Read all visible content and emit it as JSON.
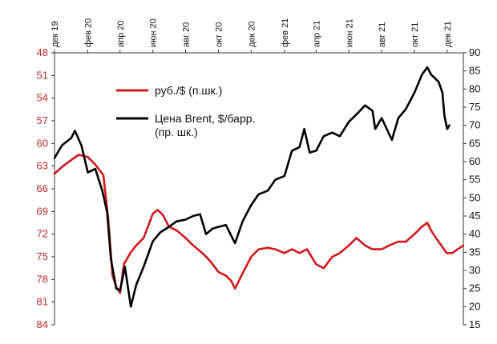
{
  "chart_data": {
    "type": "line",
    "title": "",
    "x_range": [
      "2019-12-01",
      "2021-12-31"
    ],
    "x_ticks": [
      {
        "date": "2019-12-01",
        "label": "дек 19"
      },
      {
        "date": "2020-02-01",
        "label": "фев 20"
      },
      {
        "date": "2020-04-01",
        "label": "апр 20"
      },
      {
        "date": "2020-06-01",
        "label": "июн 20"
      },
      {
        "date": "2020-08-01",
        "label": "авг 20"
      },
      {
        "date": "2020-10-01",
        "label": "окт 20"
      },
      {
        "date": "2020-12-01",
        "label": "дек 20"
      },
      {
        "date": "2021-02-01",
        "label": "фев 21"
      },
      {
        "date": "2021-04-01",
        "label": "апр 21"
      },
      {
        "date": "2021-06-01",
        "label": "июн 21"
      },
      {
        "date": "2021-08-01",
        "label": "авг 21"
      },
      {
        "date": "2021-10-01",
        "label": "окт 21"
      },
      {
        "date": "2021-12-01",
        "label": "дек 21"
      }
    ],
    "y_left": {
      "min": 48,
      "max": 84,
      "inverted": true,
      "ticks": [
        "48",
        "51",
        "54",
        "57",
        "60",
        "63",
        "66",
        "69",
        "72",
        "75",
        "78",
        "81",
        "84"
      ],
      "color": "#c0282a"
    },
    "y_right": {
      "min": 15,
      "max": 90,
      "ticks": [
        "15",
        "20",
        "25",
        "30",
        "35",
        "40",
        "45",
        "50",
        "55",
        "60",
        "65",
        "70",
        "75",
        "80",
        "85",
        "90"
      ]
    },
    "legend": {
      "placement": "upper-left-inside"
    },
    "series": [
      {
        "name": "руб./$ (п.шк.)",
        "axis": "left",
        "color": "#d0181c",
        "points": [
          [
            "2019-12-01",
            64.0
          ],
          [
            "2019-12-15",
            63.1
          ],
          [
            "2020-01-01",
            62.2
          ],
          [
            "2020-01-15",
            61.5
          ],
          [
            "2020-02-01",
            61.8
          ],
          [
            "2020-02-15",
            62.8
          ],
          [
            "2020-03-01",
            64.2
          ],
          [
            "2020-03-10",
            70.0
          ],
          [
            "2020-03-18",
            77.5
          ],
          [
            "2020-03-25",
            79.0
          ],
          [
            "2020-04-01",
            79.8
          ],
          [
            "2020-04-08",
            76.0
          ],
          [
            "2020-04-20",
            74.5
          ],
          [
            "2020-05-01",
            73.5
          ],
          [
            "2020-05-15",
            72.5
          ],
          [
            "2020-06-01",
            69.3
          ],
          [
            "2020-06-10",
            68.8
          ],
          [
            "2020-06-20",
            69.5
          ],
          [
            "2020-07-01",
            71.0
          ],
          [
            "2020-07-15",
            71.5
          ],
          [
            "2020-08-01",
            72.5
          ],
          [
            "2020-08-15",
            73.5
          ],
          [
            "2020-09-01",
            74.5
          ],
          [
            "2020-09-15",
            75.5
          ],
          [
            "2020-10-01",
            77.0
          ],
          [
            "2020-10-15",
            77.5
          ],
          [
            "2020-10-25",
            78.2
          ],
          [
            "2020-11-01",
            79.2
          ],
          [
            "2020-11-15",
            77.2
          ],
          [
            "2020-12-01",
            75.0
          ],
          [
            "2020-12-15",
            74.0
          ],
          [
            "2021-01-01",
            73.8
          ],
          [
            "2021-01-15",
            74.0
          ],
          [
            "2021-02-01",
            74.5
          ],
          [
            "2021-02-15",
            74.0
          ],
          [
            "2021-03-01",
            74.5
          ],
          [
            "2021-03-15",
            74.0
          ],
          [
            "2021-04-01",
            76.0
          ],
          [
            "2021-04-15",
            76.5
          ],
          [
            "2021-05-01",
            75.0
          ],
          [
            "2021-05-15",
            74.5
          ],
          [
            "2021-06-01",
            73.5
          ],
          [
            "2021-06-15",
            72.5
          ],
          [
            "2021-07-01",
            73.5
          ],
          [
            "2021-07-15",
            74.0
          ],
          [
            "2021-08-01",
            74.0
          ],
          [
            "2021-08-15",
            73.5
          ],
          [
            "2021-09-01",
            73.0
          ],
          [
            "2021-09-15",
            73.0
          ],
          [
            "2021-10-01",
            72.0
          ],
          [
            "2021-10-15",
            71.0
          ],
          [
            "2021-10-25",
            70.5
          ],
          [
            "2021-11-01",
            71.5
          ],
          [
            "2021-11-10",
            72.5
          ],
          [
            "2021-11-20",
            73.5
          ],
          [
            "2021-11-30",
            74.5
          ],
          [
            "2021-12-10",
            74.5
          ],
          [
            "2021-12-31",
            73.5
          ]
        ]
      },
      {
        "name": "Цена Brent, $/барр. (пр. шк.)",
        "axis": "right",
        "color": "#000000",
        "points": [
          [
            "2019-12-01",
            61.0
          ],
          [
            "2019-12-15",
            64.5
          ],
          [
            "2020-01-01",
            66.5
          ],
          [
            "2020-01-08",
            68.5
          ],
          [
            "2020-01-20",
            64.5
          ],
          [
            "2020-02-01",
            57.0
          ],
          [
            "2020-02-15",
            58.0
          ],
          [
            "2020-02-28",
            52.0
          ],
          [
            "2020-03-08",
            46.0
          ],
          [
            "2020-03-15",
            33.0
          ],
          [
            "2020-03-25",
            25.0
          ],
          [
            "2020-04-01",
            24.5
          ],
          [
            "2020-04-10",
            31.0
          ],
          [
            "2020-04-21",
            20.0
          ],
          [
            "2020-05-01",
            26.0
          ],
          [
            "2020-05-15",
            31.0
          ],
          [
            "2020-06-01",
            38.0
          ],
          [
            "2020-06-15",
            40.5
          ],
          [
            "2020-07-01",
            42.0
          ],
          [
            "2020-07-15",
            43.5
          ],
          [
            "2020-08-01",
            44.0
          ],
          [
            "2020-08-15",
            45.0
          ],
          [
            "2020-08-28",
            45.5
          ],
          [
            "2020-09-08",
            40.0
          ],
          [
            "2020-09-20",
            41.5
          ],
          [
            "2020-10-01",
            42.0
          ],
          [
            "2020-10-15",
            42.5
          ],
          [
            "2020-11-01",
            37.5
          ],
          [
            "2020-11-15",
            43.5
          ],
          [
            "2020-12-01",
            48.0
          ],
          [
            "2020-12-15",
            51.0
          ],
          [
            "2021-01-01",
            52.0
          ],
          [
            "2021-01-15",
            55.0
          ],
          [
            "2021-02-01",
            56.0
          ],
          [
            "2021-02-15",
            63.0
          ],
          [
            "2021-03-01",
            64.0
          ],
          [
            "2021-03-10",
            69.0
          ],
          [
            "2021-03-20",
            62.5
          ],
          [
            "2021-04-01",
            63.0
          ],
          [
            "2021-04-15",
            67.0
          ],
          [
            "2021-05-01",
            68.0
          ],
          [
            "2021-05-15",
            67.0
          ],
          [
            "2021-06-01",
            71.0
          ],
          [
            "2021-06-15",
            73.0
          ],
          [
            "2021-07-01",
            75.5
          ],
          [
            "2021-07-15",
            74.0
          ],
          [
            "2021-07-20",
            69.0
          ],
          [
            "2021-08-01",
            72.0
          ],
          [
            "2021-08-20",
            66.0
          ],
          [
            "2021-09-01",
            72.0
          ],
          [
            "2021-09-15",
            74.5
          ],
          [
            "2021-10-01",
            79.0
          ],
          [
            "2021-10-15",
            84.0
          ],
          [
            "2021-10-25",
            86.0
          ],
          [
            "2021-11-01",
            84.0
          ],
          [
            "2021-11-15",
            82.0
          ],
          [
            "2021-11-22",
            79.0
          ],
          [
            "2021-11-26",
            72.5
          ],
          [
            "2021-12-01",
            69.0
          ],
          [
            "2021-12-05",
            70.0
          ]
        ]
      }
    ]
  },
  "legend": {
    "rub_label": "руб./$ (п.шк.)",
    "brent_label_line1": "Цена Brent, $/барр.",
    "brent_label_line2": "(пр. шк.)"
  }
}
